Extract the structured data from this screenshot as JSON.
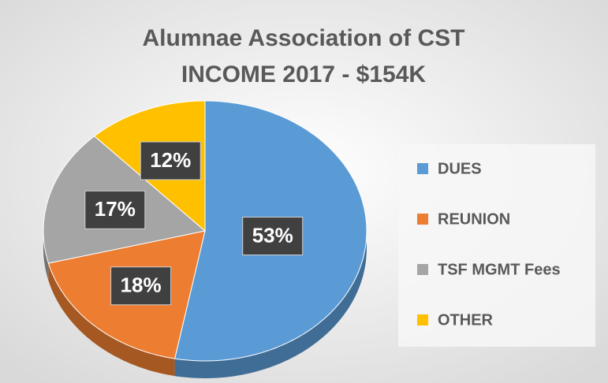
{
  "chart_data": {
    "type": "pie",
    "title": "Alumnae Association of CST",
    "subtitle": "INCOME 2017 - $154K",
    "categories": [
      "DUES",
      "REUNION",
      "TSF MGMT Fees",
      "OTHER"
    ],
    "values": [
      53,
      18,
      17,
      12
    ],
    "value_labels": [
      "53%",
      "18%",
      "17%",
      "12%"
    ],
    "colors": [
      "#5b9bd5",
      "#ed7d31",
      "#a5a5a5",
      "#ffc000"
    ],
    "legend": "right"
  }
}
